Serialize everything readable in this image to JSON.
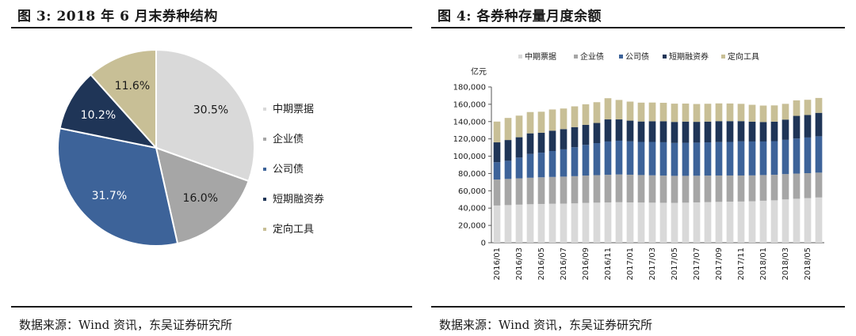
{
  "figure_left": {
    "title": "图 3:  2018 年 6 月末券种结构",
    "source": "数据来源：Wind 资讯，东吴证券研究所"
  },
  "figure_right": {
    "title": "图 4:  各券种存量月度余额",
    "source": "数据来源：Wind 资讯，东吴证券研究所"
  },
  "colors": {
    "中期票据": "#d9d9d9",
    "企业债": "#a6a6a6",
    "公司债": "#3d6399",
    "短期融资券": "#1f3557",
    "定向工具": "#c8bf96"
  },
  "chart_data": [
    {
      "type": "pie",
      "categories": [
        "中期票据",
        "企业债",
        "公司债",
        "短期融资券",
        "定向工具"
      ],
      "values": [
        30.5,
        16.0,
        31.7,
        10.2,
        11.6
      ],
      "labels": [
        "30.5%",
        "16.0%",
        "31.7%",
        "10.2%",
        "11.6%"
      ],
      "legend": "right"
    },
    {
      "type": "bar",
      "stacked": true,
      "y_unit": "亿元",
      "ylim": [
        0,
        180000
      ],
      "yticks": [
        "0",
        "20,000",
        "40,000",
        "60,000",
        "80,000",
        "100,000",
        "120,000",
        "140,000",
        "160,000",
        "180,000"
      ],
      "legend": "top",
      "x": [
        "2016/01",
        "2016/02",
        "2016/03",
        "2016/04",
        "2016/05",
        "2016/06",
        "2016/07",
        "2016/08",
        "2016/09",
        "2016/10",
        "2016/11",
        "2016/12",
        "2017/01",
        "2017/02",
        "2017/03",
        "2017/04",
        "2017/05",
        "2017/06",
        "2017/07",
        "2017/08",
        "2017/09",
        "2017/10",
        "2017/11",
        "2017/12",
        "2018/01",
        "2018/02",
        "2018/03",
        "2018/04",
        "2018/05",
        "2018/06"
      ],
      "xtick_labels": [
        "2016/01",
        "2016/03",
        "2016/05",
        "2016/07",
        "2016/09",
        "2016/11",
        "2017/01",
        "2017/03",
        "2017/05",
        "2017/07",
        "2017/09",
        "2017/11",
        "2018/01",
        "2018/03",
        "2018/05"
      ],
      "series": [
        {
          "name": "中期票据",
          "values": [
            43000,
            43500,
            44000,
            44500,
            44800,
            45000,
            45200,
            45500,
            46000,
            46300,
            46500,
            46800,
            46600,
            46400,
            46300,
            46200,
            46100,
            46300,
            46600,
            46900,
            47200,
            47400,
            47600,
            47900,
            48500,
            49000,
            50000,
            50800,
            51500,
            52300
          ]
        },
        {
          "name": "企业债",
          "values": [
            30000,
            30200,
            30400,
            30600,
            30800,
            31000,
            31200,
            31400,
            31600,
            31800,
            32000,
            32100,
            32000,
            31800,
            31600,
            31400,
            31200,
            31000,
            30800,
            30700,
            30500,
            30300,
            30100,
            29900,
            29700,
            29500,
            29300,
            29100,
            28900,
            28700
          ]
        },
        {
          "name": "公司债",
          "values": [
            20000,
            21000,
            24000,
            27500,
            28500,
            30000,
            31500,
            33500,
            35500,
            37000,
            38500,
            39000,
            38500,
            38300,
            38600,
            38500,
            38000,
            38200,
            38300,
            38400,
            38600,
            38800,
            39400,
            39200,
            38800,
            38900,
            39600,
            40500,
            41200,
            42000
          ]
        },
        {
          "name": "短期融资券",
          "values": [
            23000,
            24000,
            23500,
            23800,
            23000,
            23500,
            23400,
            23200,
            23100,
            23300,
            25500,
            24600,
            24000,
            23600,
            23900,
            24300,
            24300,
            24500,
            24000,
            24000,
            24200,
            24000,
            23400,
            22900,
            22500,
            22500,
            23400,
            26200,
            26000,
            27100
          ]
        },
        {
          "name": "定向工具",
          "values": [
            24000,
            25500,
            25000,
            24600,
            24300,
            24500,
            23800,
            24000,
            23800,
            24000,
            24500,
            22500,
            22000,
            21800,
            21600,
            21300,
            21100,
            20800,
            20600,
            20600,
            20500,
            20400,
            20000,
            19500,
            19000,
            18800,
            18200,
            17900,
            17600,
            17200
          ]
        }
      ]
    }
  ]
}
